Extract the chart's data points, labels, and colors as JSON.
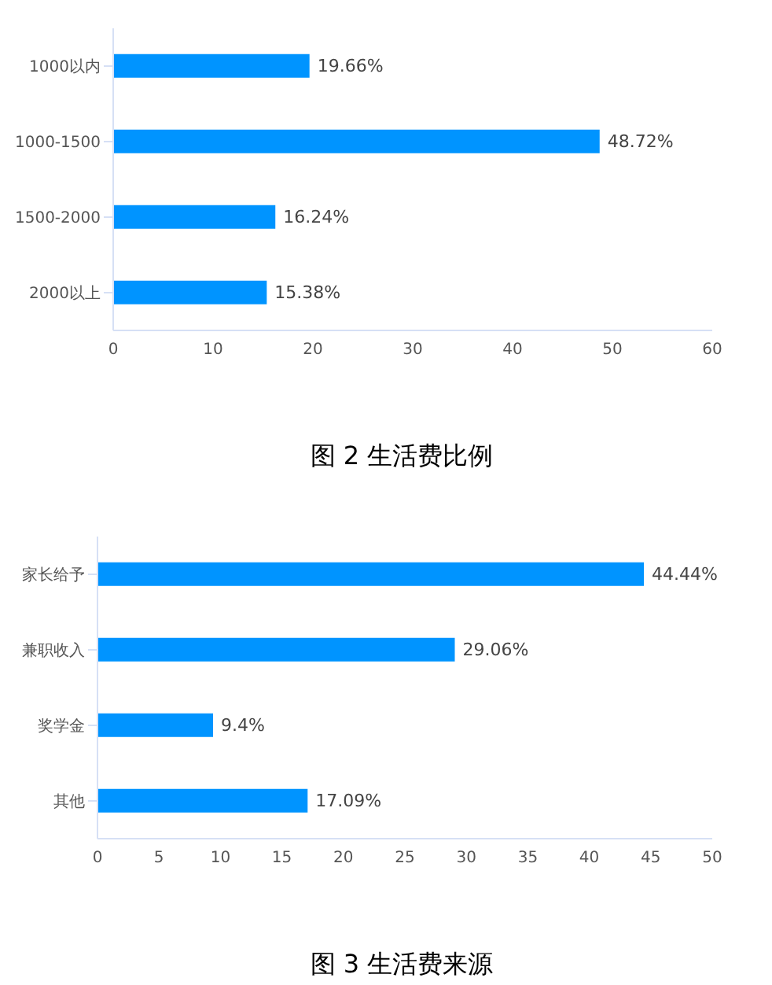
{
  "chart_data": [
    {
      "type": "bar",
      "orientation": "horizontal",
      "title": "图 2 生活费比例",
      "categories": [
        "1000以内",
        "1000-1500",
        "1500-2000",
        "2000以上"
      ],
      "values": [
        19.66,
        48.72,
        16.24,
        15.38
      ],
      "value_labels": [
        "19.66%",
        "48.72%",
        "16.24%",
        "15.38%"
      ],
      "color": "#0094ff",
      "xlim": [
        0,
        60
      ],
      "xticks": [
        0,
        10,
        20,
        30,
        40,
        50,
        60
      ],
      "grid": false,
      "legend": false
    },
    {
      "type": "bar",
      "orientation": "horizontal",
      "title": "图 3 生活费来源",
      "categories": [
        "家长给予",
        "兼职收入",
        "奖学金",
        "其他"
      ],
      "values": [
        44.44,
        29.06,
        9.4,
        17.09
      ],
      "value_labels": [
        "44.44%",
        "29.06%",
        "9.4%",
        "17.09%"
      ],
      "color": "#0094ff",
      "xlim": [
        0,
        50
      ],
      "xticks": [
        0,
        5,
        10,
        15,
        20,
        25,
        30,
        35,
        40,
        45,
        50
      ],
      "grid": false,
      "legend": false
    }
  ]
}
